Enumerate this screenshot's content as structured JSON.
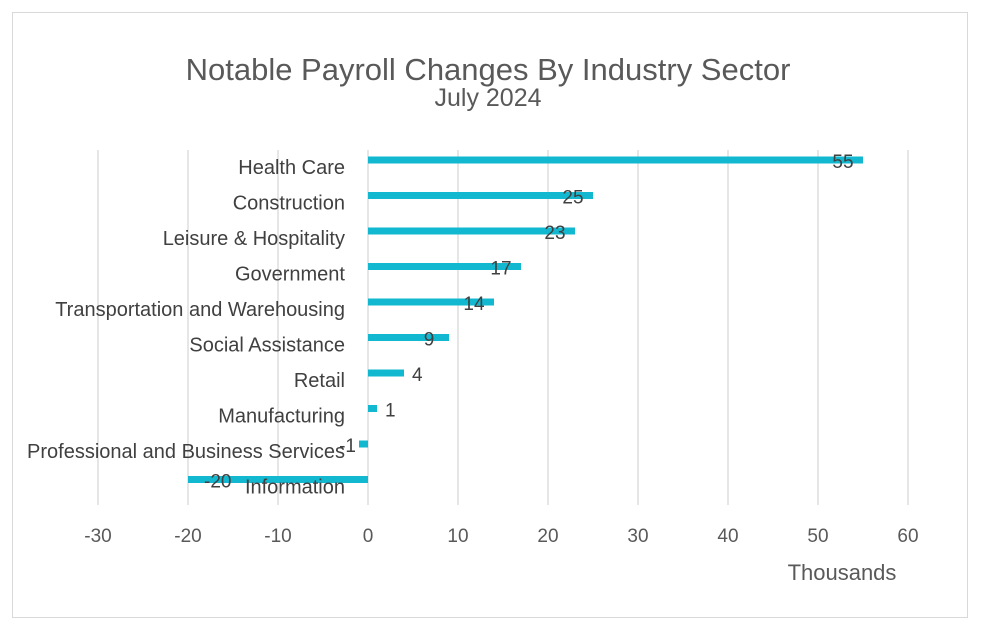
{
  "chart_data": {
    "type": "bar",
    "orientation": "horizontal",
    "title": "Notable Payroll Changes By Industry Sector",
    "subtitle": "July 2024",
    "xlabel": "Thousands",
    "ylabel": "",
    "xlim": [
      -30,
      60
    ],
    "xticks": [
      "-30",
      "-20",
      "-10",
      "0",
      "10",
      "20",
      "30",
      "40",
      "50",
      "60"
    ],
    "grid": "vertical",
    "legend": "none",
    "categories": [
      "Health Care",
      "Construction",
      "Leisure & Hospitality",
      "Government",
      "Transportation and Warehousing",
      "Social Assistance",
      "Retail",
      "Manufacturing",
      "Professional and Business Services",
      "Information"
    ],
    "values": [
      55,
      25,
      23,
      17,
      14,
      9,
      4,
      1,
      -1,
      -20
    ],
    "data_labels": [
      "55",
      "25",
      "23",
      "17",
      "14",
      "9",
      "4",
      "1",
      "-1",
      "-20"
    ],
    "bar_color": "#12b8d0",
    "grid_color": "#d9d9d9"
  }
}
